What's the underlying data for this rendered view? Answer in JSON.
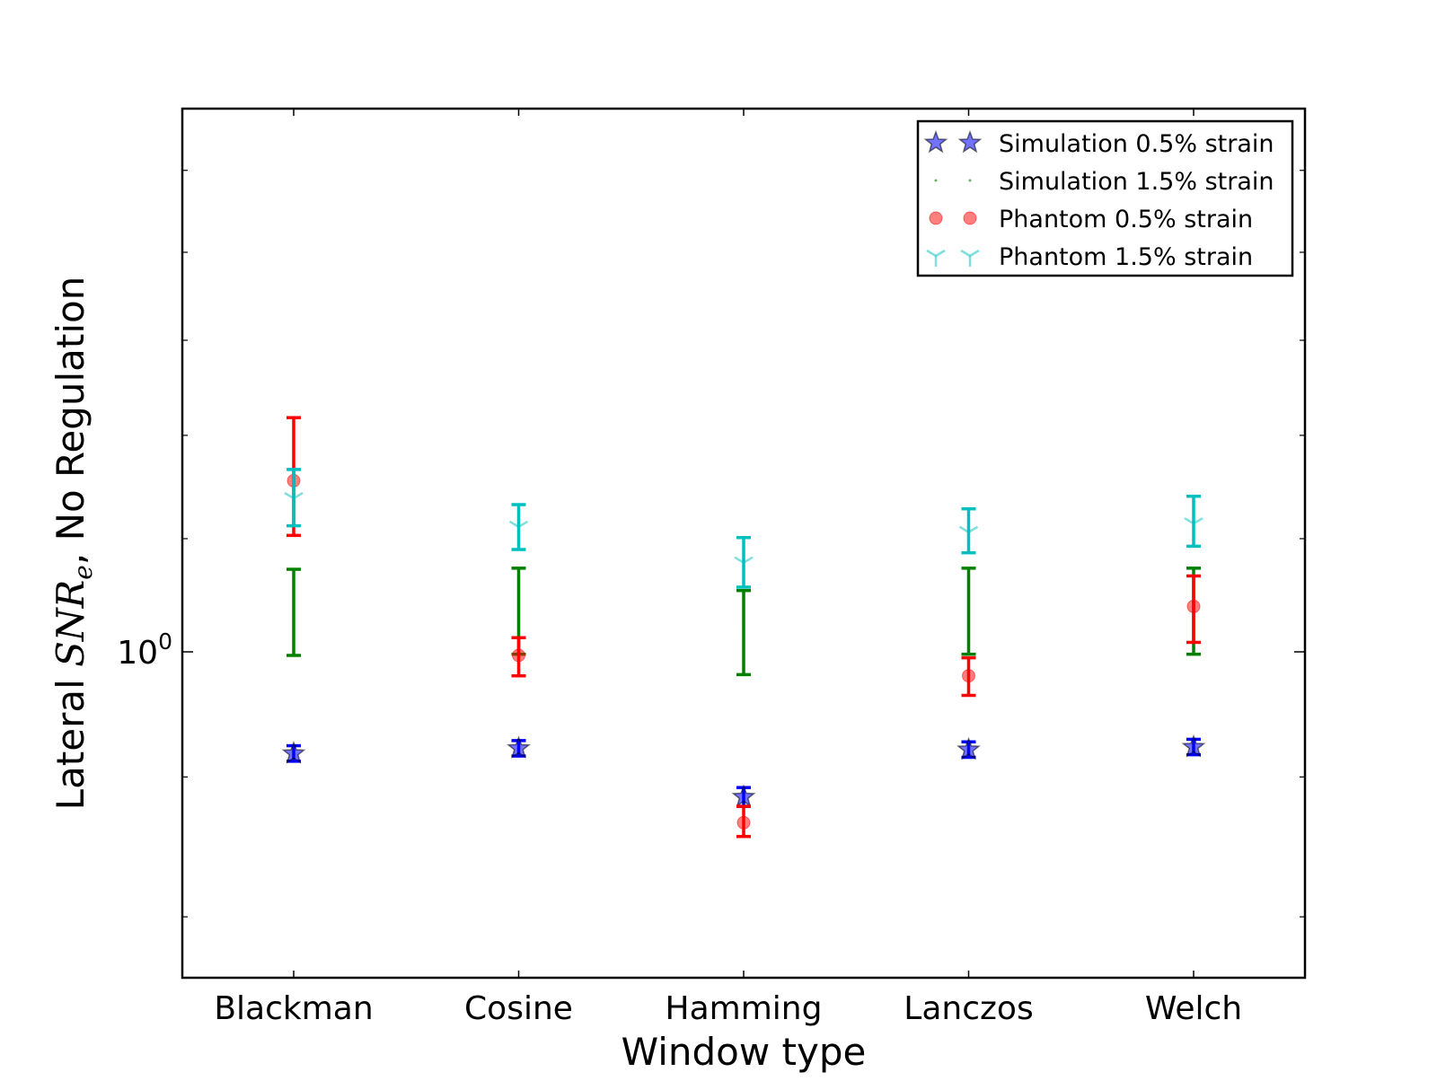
{
  "chart_data": {
    "type": "scatter",
    "xlabel": "Window type",
    "ylabel": {
      "prefix": "Lateral ",
      "symbol_main": "SNR",
      "symbol_sub": "e",
      "suffix": ", No Regulation"
    },
    "yscale": "log",
    "ylim": [
      0.76,
      1.58
    ],
    "y_tick_label": {
      "base": "10",
      "exponent": "0"
    },
    "grid": false,
    "legend_position": "top-right",
    "categories": [
      "Blackman",
      "Cosine",
      "Hamming",
      "Lanczos",
      "Welch"
    ],
    "series": [
      {
        "name": "Simulation 0.5% strain",
        "marker": "star",
        "color": "#0000ff",
        "values": [
          0.918,
          0.922,
          0.885,
          0.921,
          0.923
        ],
        "err_low": [
          0.912,
          0.916,
          0.878,
          0.915,
          0.917
        ],
        "err_high": [
          0.924,
          0.928,
          0.892,
          0.927,
          0.929
        ]
      },
      {
        "name": "Simulation 1.5% strain",
        "marker": "point",
        "color": "#008000",
        "values": [
          1.035,
          1.036,
          1.017,
          1.036,
          1.036
        ],
        "err_low": [
          0.997,
          0.998,
          0.981,
          0.998,
          0.998
        ],
        "err_high": [
          1.072,
          1.073,
          1.053,
          1.073,
          1.073
        ]
      },
      {
        "name": "Phantom 0.5% strain",
        "marker": "circle",
        "color": "#ff0000",
        "values": [
          1.155,
          0.997,
          0.866,
          0.98,
          1.039
        ],
        "err_low": [
          1.103,
          0.98,
          0.856,
          0.964,
          1.008
        ],
        "err_high": [
          1.218,
          1.012,
          0.878,
          0.995,
          1.066
        ]
      },
      {
        "name": "Phantom 1.5% strain",
        "marker": "tri_down",
        "color": "#00bfbf",
        "values": [
          1.138,
          1.111,
          1.078,
          1.106,
          1.114
        ],
        "err_low": [
          1.112,
          1.09,
          1.056,
          1.087,
          1.093
        ],
        "err_high": [
          1.166,
          1.132,
          1.101,
          1.128,
          1.14
        ]
      }
    ]
  }
}
